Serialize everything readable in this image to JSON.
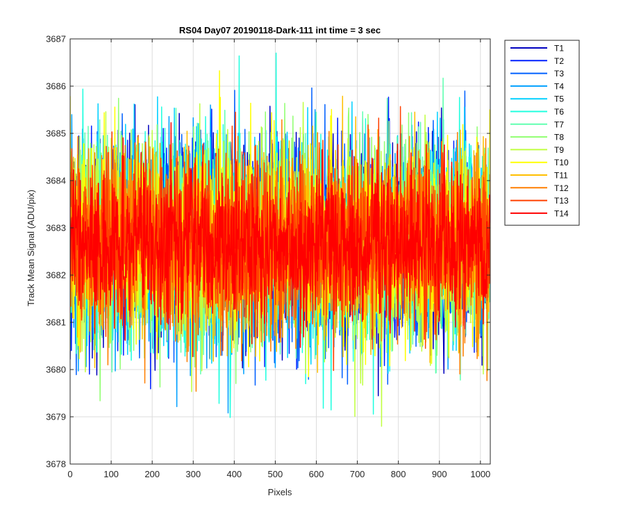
{
  "chart_data": {
    "type": "line",
    "title": "RS04 Day07 20190118-Dark-111 int time = 3 sec",
    "xlabel": "Pixels",
    "ylabel": "Track Mean Signal (ADU/pix)",
    "xlim": [
      0,
      1024
    ],
    "ylim": [
      3678,
      3687
    ],
    "grid": true,
    "legend_position": "outside-top-right",
    "x_ticks": [
      "0",
      "100",
      "200",
      "300",
      "400",
      "500",
      "600",
      "700",
      "800",
      "900",
      "1000"
    ],
    "y_ticks": [
      "3678",
      "3679",
      "3680",
      "3681",
      "3682",
      "3683",
      "3684",
      "3685",
      "3686",
      "3687"
    ],
    "x_tick_values": [
      0,
      100,
      200,
      300,
      400,
      500,
      600,
      700,
      800,
      900,
      1000
    ],
    "y_tick_values": [
      3678,
      3679,
      3680,
      3681,
      3682,
      3683,
      3684,
      3685,
      3686,
      3687
    ],
    "n_points_per_series": 1024,
    "mean_level": 3682.7,
    "approx_range": [
      3678.8,
      3686.7
    ],
    "series": [
      {
        "name": "T1",
        "color": "#0000bf",
        "sd": 1.1
      },
      {
        "name": "T2",
        "color": "#0020ff",
        "sd": 1.1
      },
      {
        "name": "T3",
        "color": "#0060ff",
        "sd": 1.1
      },
      {
        "name": "T4",
        "color": "#00a0ff",
        "sd": 1.1
      },
      {
        "name": "T5",
        "color": "#00d0ff",
        "sd": 1.1
      },
      {
        "name": "T6",
        "color": "#20ffdf",
        "sd": 1.1
      },
      {
        "name": "T7",
        "color": "#60ffb0",
        "sd": 1.1
      },
      {
        "name": "T8",
        "color": "#90ff70",
        "sd": 1.1
      },
      {
        "name": "T9",
        "color": "#c0ff40",
        "sd": 1.1
      },
      {
        "name": "T10",
        "color": "#ffff00",
        "sd": 1.1
      },
      {
        "name": "T11",
        "color": "#ffbf00",
        "sd": 1.0
      },
      {
        "name": "T12",
        "color": "#ff7f00",
        "sd": 1.0
      },
      {
        "name": "T13",
        "color": "#ff4000",
        "sd": 0.95
      },
      {
        "name": "T14",
        "color": "#ff0000",
        "sd": 0.85
      }
    ]
  }
}
